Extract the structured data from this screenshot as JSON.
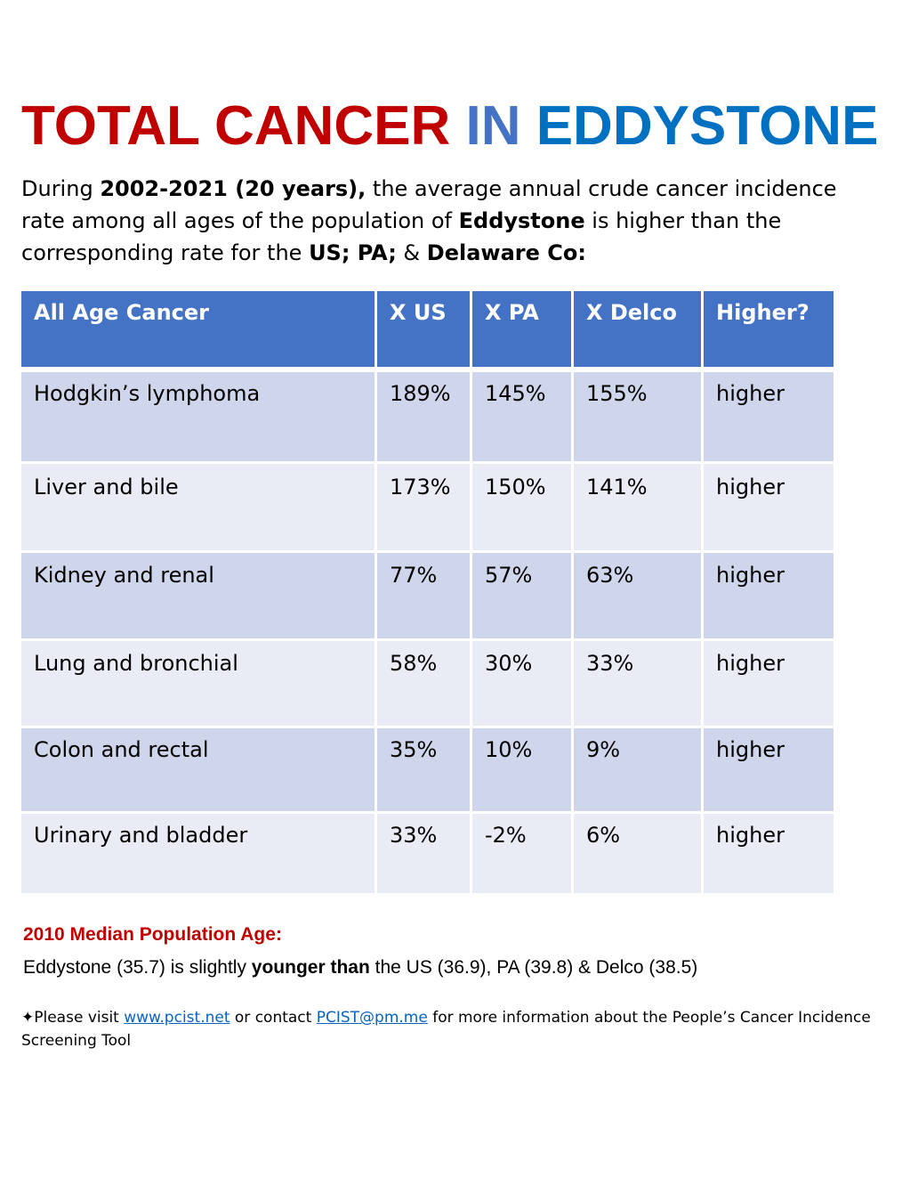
{
  "title": {
    "part1": "TOTAL CANCER",
    "part2": "IN",
    "part3": "EDDYSTONE"
  },
  "intro": {
    "t1": "During ",
    "b1": "2002-2021 (20 years),",
    "t2": " the average annual crude cancer incidence rate among all ages of the population of ",
    "b2": "Eddystone",
    "t3": " is higher than the corresponding rate for the ",
    "b3": "US; PA;",
    "t4": " & ",
    "b4": "Delaware Co:"
  },
  "table": {
    "headers": [
      "All Age Cancer",
      "X US",
      "X PA",
      "X Delco",
      "Higher?"
    ],
    "rows": [
      [
        "Hodgkin’s lymphoma",
        "189%",
        "145%",
        "155%",
        "higher"
      ],
      [
        "Liver and bile",
        "173%",
        "150%",
        "141%",
        "higher"
      ],
      [
        "Kidney and renal",
        "77%",
        "57%",
        "63%",
        "higher"
      ],
      [
        "Lung and bronchial",
        "58%",
        "30%",
        "33%",
        "higher"
      ],
      [
        "Colon and rectal",
        "35%",
        "10%",
        "9%",
        "higher"
      ],
      [
        "Urinary and bladder",
        "33%",
        "-2%",
        "6%",
        "higher"
      ]
    ]
  },
  "median": {
    "heading": "2010 Median Population Age:",
    "t1": "Eddystone (35.7) is slightly ",
    "b1": "younger than",
    "t2": " the US (36.9), PA (39.8) & Delco (38.5)"
  },
  "footnote": {
    "t1": "✦Please visit ",
    "link1": "www.pcist.net",
    "t2": " or contact ",
    "link2": "PCIST@pm.me",
    "t3": " for more information about the People’s Cancer Incidence Screening Tool"
  },
  "colors": {
    "red": "#c00000",
    "blue": "#0070c0",
    "mid_blue": "#4472c4",
    "row_dark": "#cfd5ea",
    "row_light": "#e9ebf5"
  }
}
